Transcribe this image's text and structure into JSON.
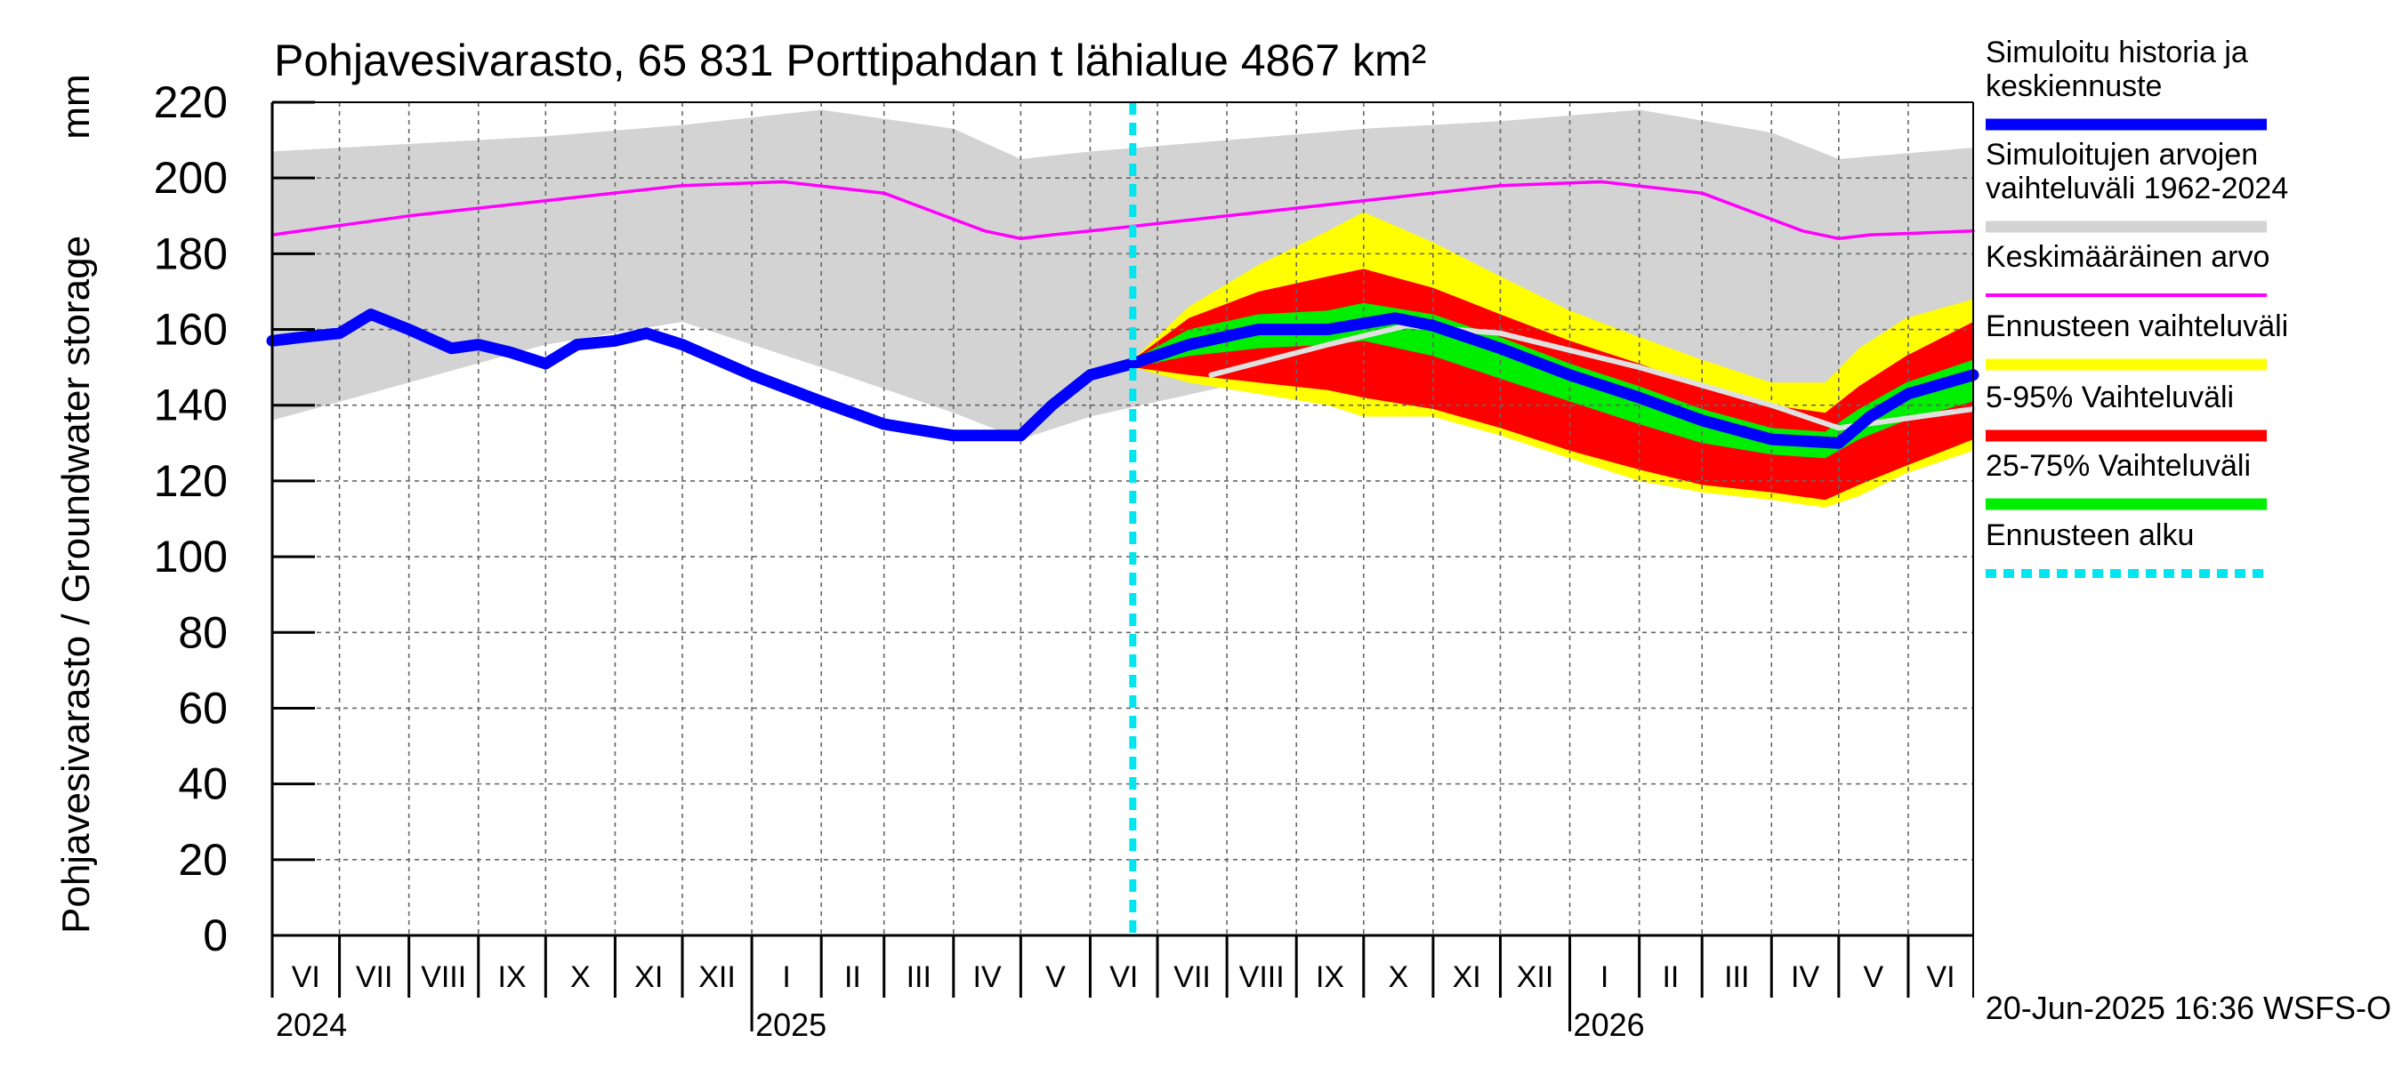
{
  "chart_data": {
    "type": "area",
    "title": "Pohjavesivarasto, 65 831 Porttipahdan t lähialue 4867 km²",
    "ylabel": "Pohjavesivarasto / Groundwater storage",
    "yunit": "mm",
    "ylim": [
      0,
      220
    ],
    "yticks": [
      0,
      20,
      40,
      60,
      80,
      100,
      120,
      140,
      160,
      180,
      200,
      220
    ],
    "x_range": [
      "2024-06-01",
      "2026-06-30"
    ],
    "months": [
      {
        "label": "VI",
        "start": "2024-06-01"
      },
      {
        "label": "VII",
        "start": "2024-07-01"
      },
      {
        "label": "VIII",
        "start": "2024-08-01"
      },
      {
        "label": "IX",
        "start": "2024-09-01"
      },
      {
        "label": "X",
        "start": "2024-10-01"
      },
      {
        "label": "XI",
        "start": "2024-11-01"
      },
      {
        "label": "XII",
        "start": "2024-12-01"
      },
      {
        "label": "I",
        "start": "2025-01-01"
      },
      {
        "label": "II",
        "start": "2025-02-01"
      },
      {
        "label": "III",
        "start": "2025-03-01"
      },
      {
        "label": "IV",
        "start": "2025-04-01"
      },
      {
        "label": "V",
        "start": "2025-05-01"
      },
      {
        "label": "VI",
        "start": "2025-06-01"
      },
      {
        "label": "VII",
        "start": "2025-07-01"
      },
      {
        "label": "VIII",
        "start": "2025-08-01"
      },
      {
        "label": "IX",
        "start": "2025-09-01"
      },
      {
        "label": "X",
        "start": "2025-10-01"
      },
      {
        "label": "XI",
        "start": "2025-11-01"
      },
      {
        "label": "XII",
        "start": "2025-12-01"
      },
      {
        "label": "I",
        "start": "2026-01-01"
      },
      {
        "label": "II",
        "start": "2026-02-01"
      },
      {
        "label": "III",
        "start": "2026-03-01"
      },
      {
        "label": "IV",
        "start": "2026-04-01"
      },
      {
        "label": "V",
        "start": "2026-05-01"
      },
      {
        "label": "VI",
        "start": "2026-06-01"
      }
    ],
    "years": [
      {
        "label": "2024",
        "date": "2024-06-01"
      },
      {
        "label": "2025",
        "date": "2025-01-01"
      },
      {
        "label": "2026",
        "date": "2026-01-01"
      }
    ],
    "forecast_start": "2025-06-20",
    "series": [
      {
        "name": "Simuloitujen arvojen vaihteluväli 1962-2024",
        "kind": "band",
        "color": "#d3d3d3",
        "x": [
          "2024-06-01",
          "2024-08-01",
          "2024-10-01",
          "2024-12-01",
          "2025-02-01",
          "2025-04-01",
          "2025-05-01",
          "2025-06-01",
          "2025-08-01",
          "2025-10-01",
          "2025-12-01",
          "2026-02-01",
          "2026-04-01",
          "2026-05-01",
          "2026-06-30"
        ],
        "upper": [
          207,
          209,
          211,
          214,
          218,
          213,
          205,
          207,
          210,
          213,
          215,
          218,
          212,
          205,
          208
        ],
        "lower": [
          136,
          146,
          156,
          162,
          150,
          138,
          131,
          137,
          145,
          153,
          158,
          150,
          138,
          131,
          137
        ]
      },
      {
        "name": "Ennusteen vaihteluväli",
        "kind": "band",
        "color": "#ffff00",
        "x": [
          "2025-06-20",
          "2025-07-15",
          "2025-08-15",
          "2025-09-15",
          "2025-10-01",
          "2025-11-01",
          "2025-12-01",
          "2026-01-01",
          "2026-02-01",
          "2026-03-01",
          "2026-04-01",
          "2026-04-25",
          "2026-05-10",
          "2026-05-31",
          "2026-06-30"
        ],
        "upper": [
          152,
          166,
          177,
          186,
          191,
          183,
          174,
          165,
          158,
          152,
          146,
          146,
          155,
          163,
          168
        ],
        "lower": [
          150,
          146,
          143,
          140,
          137,
          137,
          132,
          126,
          120,
          117,
          115,
          113,
          116,
          122,
          128
        ]
      },
      {
        "name": "5-95% Vaihteluväli",
        "kind": "band",
        "color": "#ff0000",
        "x": [
          "2025-06-20",
          "2025-07-15",
          "2025-08-15",
          "2025-09-15",
          "2025-10-01",
          "2025-11-01",
          "2025-12-01",
          "2026-01-01",
          "2026-02-01",
          "2026-03-01",
          "2026-04-01",
          "2026-04-25",
          "2026-05-10",
          "2026-05-31",
          "2026-06-30"
        ],
        "upper": [
          152,
          163,
          170,
          174,
          176,
          171,
          164,
          157,
          151,
          145,
          140,
          138,
          145,
          153,
          162
        ],
        "lower": [
          150,
          148,
          146,
          144,
          142,
          139,
          134,
          128,
          123,
          119,
          117,
          115,
          119,
          124,
          131
        ]
      },
      {
        "name": "25-75% Vaihteluväli",
        "kind": "band",
        "color": "#00ee00",
        "x": [
          "2025-06-20",
          "2025-07-15",
          "2025-08-15",
          "2025-09-15",
          "2025-10-01",
          "2025-11-01",
          "2025-12-01",
          "2026-01-01",
          "2026-02-01",
          "2026-03-01",
          "2026-04-01",
          "2026-04-25",
          "2026-05-10",
          "2026-05-31",
          "2026-06-30"
        ],
        "upper": [
          152,
          160,
          164,
          165,
          167,
          164,
          158,
          151,
          145,
          139,
          134,
          133,
          139,
          146,
          152
        ],
        "lower": [
          150,
          153,
          155,
          156,
          157,
          153,
          147,
          141,
          135,
          130,
          127,
          126,
          131,
          136,
          141
        ]
      },
      {
        "name": "Keskimääräinen arvo",
        "kind": "line",
        "color": "#ff00ff",
        "x": [
          "2024-06-01",
          "2024-08-01",
          "2024-10-01",
          "2024-12-01",
          "2025-01-15",
          "2025-03-01",
          "2025-04-15",
          "2025-05-01",
          "2025-05-15",
          "2025-06-01",
          "2025-08-01",
          "2025-10-01",
          "2025-12-01",
          "2026-01-15",
          "2026-03-01",
          "2026-04-15",
          "2026-05-01",
          "2026-05-15",
          "2026-06-30"
        ],
        "y": [
          185,
          190,
          194,
          198,
          199,
          196,
          186,
          184,
          185,
          186,
          190,
          194,
          198,
          199,
          196,
          186,
          184,
          185,
          186
        ]
      },
      {
        "name": "",
        "kind": "line",
        "color": "#e0e0e0",
        "x": [
          "2025-07-25",
          "2025-09-15",
          "2025-10-20",
          "2025-12-01",
          "2026-02-01",
          "2026-04-01",
          "2026-05-01",
          "2026-06-30"
        ],
        "y": [
          148,
          156,
          161,
          159,
          150,
          140,
          134,
          139
        ]
      },
      {
        "name": "Simuloitu historia ja keskiennuste",
        "kind": "line",
        "color": "#0000ff",
        "x": [
          "2024-06-01",
          "2024-06-15",
          "2024-07-01",
          "2024-07-15",
          "2024-08-01",
          "2024-08-20",
          "2024-09-01",
          "2024-09-15",
          "2024-10-01",
          "2024-10-15",
          "2024-11-01",
          "2024-11-15",
          "2024-12-01",
          "2025-01-01",
          "2025-02-01",
          "2025-03-01",
          "2025-04-01",
          "2025-05-01",
          "2025-05-15",
          "2025-06-01",
          "2025-06-20",
          "2025-07-15",
          "2025-08-15",
          "2025-09-15",
          "2025-10-15",
          "2025-11-01",
          "2025-12-01",
          "2026-01-01",
          "2026-02-01",
          "2026-03-01",
          "2026-04-01",
          "2026-05-01",
          "2026-05-15",
          "2026-06-01",
          "2026-06-30"
        ],
        "y": [
          157,
          158,
          159,
          164,
          160,
          155,
          156,
          154,
          151,
          156,
          157,
          159,
          156,
          148,
          141,
          135,
          132,
          132,
          140,
          148,
          151,
          156,
          160,
          160,
          163,
          161,
          155,
          148,
          142,
          136,
          131,
          130,
          137,
          143,
          148
        ]
      },
      {
        "name": "Ennusteen alku",
        "kind": "vline",
        "color": "#00e5ee",
        "x": "2025-06-20"
      }
    ],
    "legend_position": "right",
    "legend": [
      {
        "label": "Simuloitu historia ja keskiennuste",
        "color": "#0000ff",
        "style": "solid"
      },
      {
        "label": "Simuloitujen arvojen vaihteluväli 1962-2024",
        "color": "#d3d3d3",
        "style": "solid"
      },
      {
        "label": "Keskimääräinen arvo",
        "color": "#ff00ff",
        "style": "thin"
      },
      {
        "label": "Ennusteen vaihteluväli",
        "color": "#ffff00",
        "style": "solid"
      },
      {
        "label": "5-95% Vaihteluväli",
        "color": "#ff0000",
        "style": "solid"
      },
      {
        "label": "25-75% Vaihteluväli",
        "color": "#00ee00",
        "style": "solid"
      },
      {
        "label": "Ennusteen alku",
        "color": "#00e5ee",
        "style": "dotted"
      }
    ],
    "footer": "20-Jun-2025 16:36 WSFS-O",
    "grid": true
  }
}
